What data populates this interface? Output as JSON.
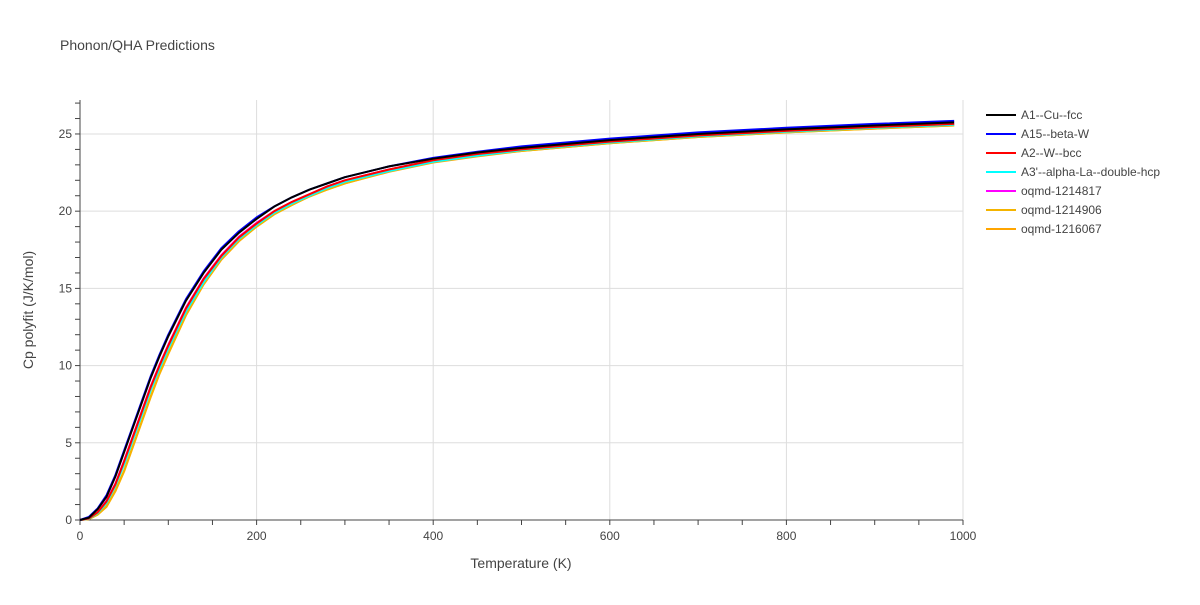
{
  "chart_data": {
    "type": "line",
    "title": "Phonon/QHA Predictions",
    "xlabel": "Temperature (K)",
    "ylabel": "Cp polyfit (J/K/mol)",
    "xlim": [
      0,
      1000
    ],
    "ylim": [
      0,
      27.2
    ],
    "x_ticks": [
      0,
      200,
      400,
      600,
      800,
      1000
    ],
    "y_ticks": [
      0,
      5,
      10,
      15,
      20,
      25
    ],
    "grid": true,
    "legend_position": "right",
    "x": [
      0,
      10,
      20,
      30,
      40,
      50,
      60,
      70,
      80,
      90,
      100,
      120,
      140,
      160,
      180,
      200,
      220,
      240,
      260,
      280,
      300,
      350,
      400,
      450,
      500,
      600,
      700,
      800,
      900,
      990
    ],
    "series": [
      {
        "name": "A1--Cu--fcc",
        "color": "#000000",
        "values": [
          0,
          0.15,
          0.7,
          1.5,
          2.8,
          4.4,
          6.0,
          7.6,
          9.2,
          10.6,
          11.9,
          14.2,
          16.0,
          17.5,
          18.6,
          19.5,
          20.3,
          20.9,
          21.4,
          21.8,
          22.2,
          22.9,
          23.4,
          23.8,
          24.1,
          24.6,
          25.0,
          25.3,
          25.55,
          25.75
        ]
      },
      {
        "name": "A15--beta-W",
        "color": "#0000ff",
        "values": [
          0,
          0.2,
          0.75,
          1.6,
          2.9,
          4.5,
          6.1,
          7.7,
          9.3,
          10.7,
          12.0,
          14.3,
          16.1,
          17.6,
          18.7,
          19.6,
          20.3,
          20.9,
          21.4,
          21.8,
          22.2,
          22.9,
          23.45,
          23.85,
          24.2,
          24.7,
          25.1,
          25.4,
          25.65,
          25.85
        ]
      },
      {
        "name": "A2--W--bcc",
        "color": "#ff0000",
        "values": [
          0,
          0.1,
          0.5,
          1.2,
          2.3,
          3.8,
          5.4,
          7.0,
          8.6,
          10.0,
          11.3,
          13.7,
          15.6,
          17.1,
          18.3,
          19.2,
          20.0,
          20.6,
          21.1,
          21.6,
          22.0,
          22.7,
          23.3,
          23.7,
          24.0,
          24.5,
          24.9,
          25.2,
          25.45,
          25.65
        ]
      },
      {
        "name": "A3'--alpha-La--double-hcp",
        "color": "#00ffff",
        "values": [
          0,
          0.08,
          0.45,
          1.1,
          2.2,
          3.6,
          5.2,
          6.8,
          8.4,
          9.8,
          11.1,
          13.5,
          15.4,
          17.0,
          18.2,
          19.1,
          19.9,
          20.5,
          21.0,
          21.5,
          21.9,
          22.6,
          23.2,
          23.6,
          23.95,
          24.45,
          24.85,
          25.15,
          25.4,
          25.6
        ]
      },
      {
        "name": "oqmd-1214817",
        "color": "#ff00ff",
        "values": [
          0,
          0.1,
          0.5,
          1.25,
          2.35,
          3.85,
          5.45,
          7.05,
          8.65,
          10.05,
          11.35,
          13.75,
          15.65,
          17.15,
          18.35,
          19.25,
          20.0,
          20.6,
          21.1,
          21.6,
          22.0,
          22.7,
          23.3,
          23.7,
          24.0,
          24.5,
          24.9,
          25.2,
          25.45,
          25.65
        ]
      },
      {
        "name": "oqmd-1214906",
        "color": "#f4b400",
        "values": [
          0,
          0.06,
          0.35,
          0.9,
          1.9,
          3.2,
          4.8,
          6.4,
          8.0,
          9.5,
          10.8,
          13.3,
          15.3,
          16.9,
          18.1,
          19.0,
          19.8,
          20.4,
          21.0,
          21.4,
          21.8,
          22.6,
          23.2,
          23.6,
          23.9,
          24.4,
          24.8,
          25.1,
          25.35,
          25.55
        ]
      },
      {
        "name": "oqmd-1216067",
        "color": "#ffa500",
        "values": [
          0,
          0.06,
          0.35,
          0.85,
          1.85,
          3.15,
          4.75,
          6.35,
          7.95,
          9.45,
          10.75,
          13.25,
          15.25,
          16.85,
          18.05,
          19.0,
          19.8,
          20.4,
          20.95,
          21.4,
          21.8,
          22.55,
          23.15,
          23.55,
          23.9,
          24.4,
          24.8,
          25.1,
          25.35,
          25.55
        ]
      }
    ]
  }
}
